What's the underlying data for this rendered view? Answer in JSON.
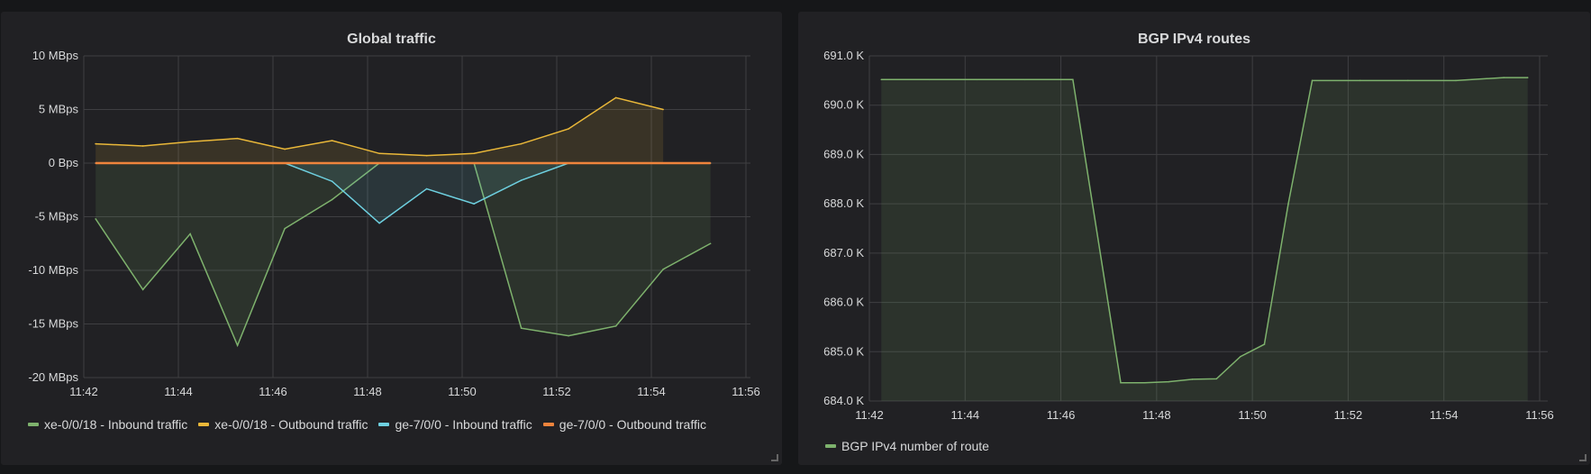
{
  "chart_data": [
    {
      "type": "area",
      "title": "Global traffic",
      "ylim": [
        -20,
        10
      ],
      "yunit": "MBps",
      "yticks": [
        "10 MBps",
        "5 MBps",
        "0 Bps",
        "-5 MBps",
        "-10 MBps",
        "-15 MBps",
        "-20 MBps"
      ],
      "ytick_values": [
        10,
        5,
        0,
        -5,
        -10,
        -15,
        -20
      ],
      "xlim": [
        "11:42",
        "11:56"
      ],
      "xticks": [
        "11:42",
        "11:44",
        "11:46",
        "11:48",
        "11:50",
        "11:52",
        "11:54",
        "11:56"
      ],
      "grid": true,
      "legend": "bottom",
      "x": [
        "11:42:15",
        "11:43:15",
        "11:44:15",
        "11:45:15",
        "11:46:15",
        "11:47:15",
        "11:48:15",
        "11:49:15",
        "11:50:15",
        "11:51:15",
        "11:52:15",
        "11:53:15",
        "11:54:15",
        "11:55:15"
      ],
      "series": [
        {
          "name": "xe-0/0/18 - Inbound traffic",
          "color": "#7eb26d",
          "values": [
            -5.2,
            -11.8,
            -6.6,
            -17.0,
            -6.1,
            -3.4,
            0,
            0,
            0,
            -15.4,
            -16.1,
            -15.2,
            -9.9,
            -7.5
          ]
        },
        {
          "name": "xe-0/0/18 - Outbound traffic",
          "color": "#eab839",
          "values": [
            1.8,
            1.6,
            2.0,
            2.3,
            1.3,
            2.1,
            0.9,
            0.7,
            0.9,
            1.8,
            3.2,
            6.1,
            5.0,
            null
          ]
        },
        {
          "name": "ge-7/0/0 - Inbound traffic",
          "color": "#6ed0e0",
          "values": [
            0,
            0,
            0,
            0,
            0,
            -1.7,
            -5.6,
            -2.4,
            -3.8,
            -1.6,
            0,
            0,
            0,
            0
          ]
        },
        {
          "name": "ge-7/0/0 - Outbound traffic",
          "color": "#ef843c",
          "values": [
            0,
            0,
            0,
            0,
            0,
            0,
            0,
            0,
            0,
            0,
            0,
            0,
            0,
            0
          ]
        }
      ]
    },
    {
      "type": "area",
      "title": "BGP IPv4 routes",
      "ylim": [
        684.0,
        691.0
      ],
      "yunit": "K",
      "yticks": [
        "691.0 K",
        "690.0 K",
        "689.0 K",
        "688.0 K",
        "687.0 K",
        "686.0 K",
        "685.0 K",
        "684.0 K"
      ],
      "ytick_values": [
        691,
        690,
        689,
        688,
        687,
        686,
        685,
        684
      ],
      "xlim": [
        "11:42",
        "11:56"
      ],
      "xticks": [
        "11:42",
        "11:44",
        "11:46",
        "11:48",
        "11:50",
        "11:52",
        "11:54",
        "11:56"
      ],
      "grid": true,
      "legend": "bottom",
      "x": [
        "11:42:15",
        "11:43:15",
        "11:44:15",
        "11:45:15",
        "11:46:15",
        "11:47:15",
        "11:47:45",
        "11:48:15",
        "11:48:45",
        "11:49:15",
        "11:49:45",
        "11:50:15",
        "11:50:45",
        "11:51:15",
        "11:52:15",
        "11:53:15",
        "11:54:15",
        "11:55:15",
        "11:55:45"
      ],
      "series": [
        {
          "name": "BGP IPv4 number of route",
          "color": "#7eb26d",
          "values": [
            690.52,
            690.52,
            690.52,
            690.52,
            690.52,
            684.37,
            684.37,
            684.39,
            684.44,
            684.45,
            684.9,
            685.15,
            688.0,
            690.5,
            690.5,
            690.5,
            690.5,
            690.56,
            690.56
          ]
        }
      ]
    }
  ]
}
